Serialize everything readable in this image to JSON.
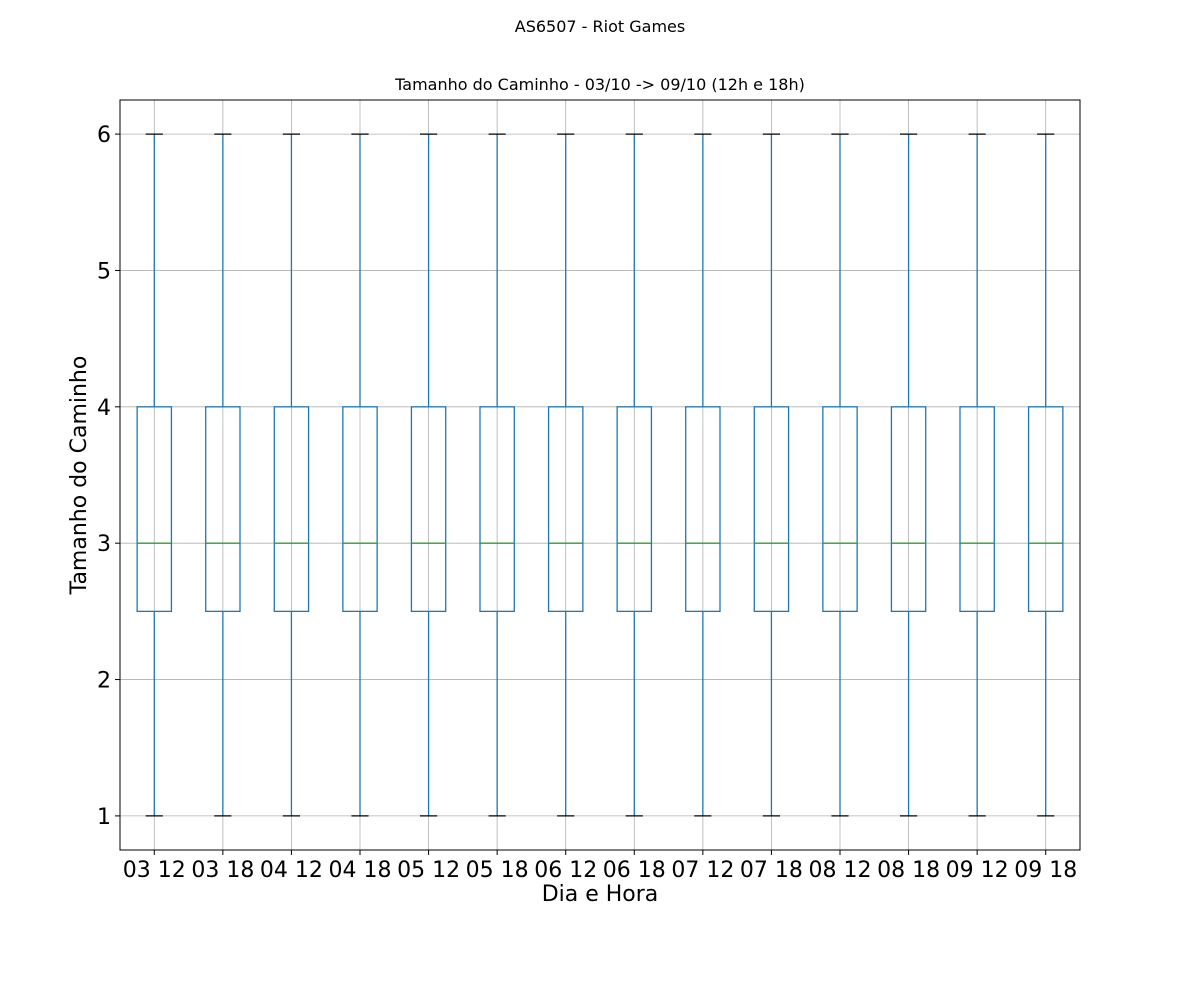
{
  "chart_data": {
    "type": "box",
    "suptitle": "AS6507 - Riot Games",
    "title": "Tamanho do Caminho - 03/10 -> 09/10 (12h e 18h)",
    "xlabel": "Dia e Hora",
    "ylabel": "Tamanho do Caminho",
    "categories": [
      "03 12",
      "03 18",
      "04 12",
      "04 18",
      "05 12",
      "05 18",
      "06 12",
      "06 18",
      "07 12",
      "07 18",
      "08 12",
      "08 18",
      "09 12",
      "09 18"
    ],
    "boxes": [
      {
        "min": 1,
        "q1": 2.5,
        "median": 3,
        "q3": 4,
        "max": 6
      },
      {
        "min": 1,
        "q1": 2.5,
        "median": 3,
        "q3": 4,
        "max": 6
      },
      {
        "min": 1,
        "q1": 2.5,
        "median": 3,
        "q3": 4,
        "max": 6
      },
      {
        "min": 1,
        "q1": 2.5,
        "median": 3,
        "q3": 4,
        "max": 6
      },
      {
        "min": 1,
        "q1": 2.5,
        "median": 3,
        "q3": 4,
        "max": 6
      },
      {
        "min": 1,
        "q1": 2.5,
        "median": 3,
        "q3": 4,
        "max": 6
      },
      {
        "min": 1,
        "q1": 2.5,
        "median": 3,
        "q3": 4,
        "max": 6
      },
      {
        "min": 1,
        "q1": 2.5,
        "median": 3,
        "q3": 4,
        "max": 6
      },
      {
        "min": 1,
        "q1": 2.5,
        "median": 3,
        "q3": 4,
        "max": 6
      },
      {
        "min": 1,
        "q1": 2.5,
        "median": 3,
        "q3": 4,
        "max": 6
      },
      {
        "min": 1,
        "q1": 2.5,
        "median": 3,
        "q3": 4,
        "max": 6
      },
      {
        "min": 1,
        "q1": 2.5,
        "median": 3,
        "q3": 4,
        "max": 6
      },
      {
        "min": 1,
        "q1": 2.5,
        "median": 3,
        "q3": 4,
        "max": 6
      },
      {
        "min": 1,
        "q1": 2.5,
        "median": 3,
        "q3": 4,
        "max": 6
      }
    ],
    "yticks": [
      1,
      2,
      3,
      4,
      5,
      6
    ],
    "ylim": [
      0.75,
      6.25
    ],
    "grid": true,
    "colors": {
      "box": "#1f77b4",
      "median": "#2ca02c",
      "cap": "#000000",
      "grid": "#b0b0b0"
    }
  }
}
